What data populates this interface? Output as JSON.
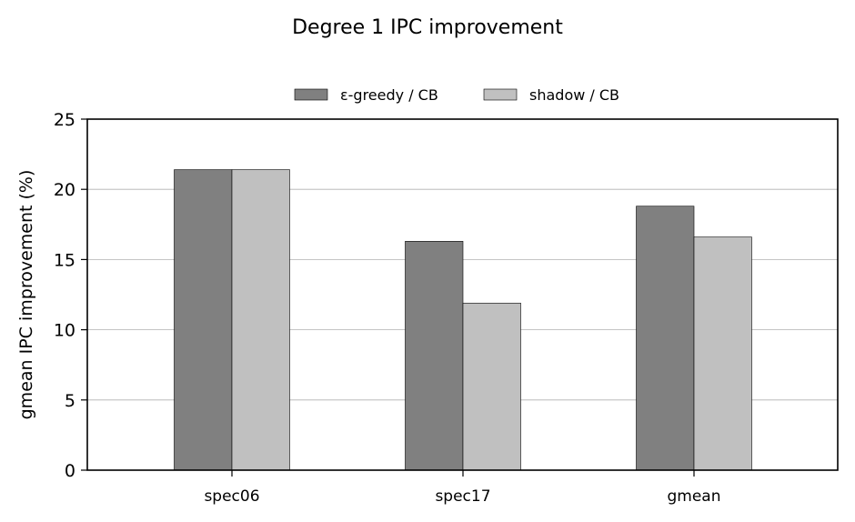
{
  "chart_data": {
    "type": "bar",
    "title": "Degree 1 IPC improvement",
    "xlabel": "",
    "ylabel": "gmean IPC improvement (%)",
    "categories": [
      "spec06",
      "spec17",
      "gmean"
    ],
    "series": [
      {
        "name": "ε-greedy / CB",
        "values": [
          21.4,
          16.3,
          18.8
        ],
        "color": "#808080"
      },
      {
        "name": "shadow / CB",
        "values": [
          21.4,
          11.9,
          16.6
        ],
        "color": "#c0c0c0"
      }
    ],
    "ylim": [
      0,
      25
    ],
    "yticks": [
      "0",
      "5",
      "10",
      "15",
      "20",
      "25"
    ],
    "grid": "horizontal",
    "legend_position": "top-center"
  }
}
